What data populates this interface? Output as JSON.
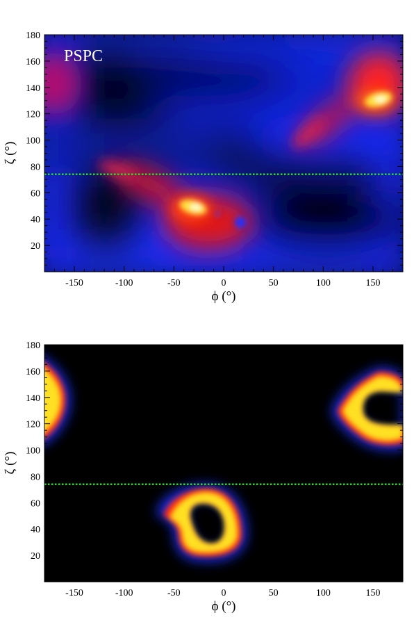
{
  "chart_data": [
    {
      "type": "heatmap",
      "title": "",
      "annotation": "PSPC",
      "xlabel": "ϕ (°)",
      "ylabel": "ζ (°)",
      "xlim": [
        -180,
        180
      ],
      "ylim": [
        0,
        180
      ],
      "xticks": [
        -150,
        -100,
        -50,
        0,
        50,
        100,
        150
      ],
      "yticks": [
        20,
        40,
        60,
        80,
        100,
        120,
        140,
        160,
        180
      ],
      "reference_line": {
        "y": 74,
        "color": "#22dd22",
        "style": "dotted"
      },
      "colormap": [
        "#000000",
        "#0000ff",
        "#ff0000",
        "#ffff00",
        "#ffffff"
      ],
      "grid": false
    },
    {
      "type": "heatmap",
      "title": "",
      "xlabel": "ϕ (°)",
      "ylabel": "ζ (°)",
      "xlim": [
        -180,
        180
      ],
      "ylim": [
        0,
        180
      ],
      "xticks": [
        -150,
        -100,
        -50,
        0,
        50,
        100,
        150
      ],
      "yticks": [
        20,
        40,
        60,
        80,
        100,
        120,
        140,
        160,
        180
      ],
      "reference_line": {
        "y": 74,
        "color": "#22dd22",
        "style": "dotted"
      },
      "colormap": [
        "#000000",
        "#0000ff",
        "#ff0000",
        "#ffff00",
        "#ffffff"
      ],
      "grid": false
    }
  ]
}
